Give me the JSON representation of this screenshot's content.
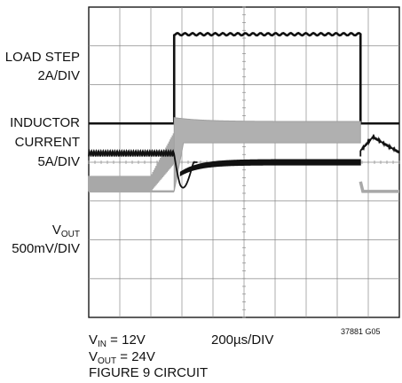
{
  "chart_data": {
    "type": "line",
    "title": "",
    "subtitle": "",
    "grid": true,
    "x_divisions": 10,
    "y_divisions": 8,
    "time_per_div": "200µs/DIV",
    "x_unit_us_per_div": 200,
    "x": [
      0,
      200,
      400,
      600,
      800,
      1000,
      1200,
      1400,
      1600,
      1800,
      2000
    ],
    "series": [
      {
        "name": "LOAD STEP",
        "scale": "2A/DIV",
        "y_div": [
          1.0,
          1.0,
          1.0,
          3.3,
          3.3,
          3.3,
          3.3,
          3.3,
          3.3,
          1.0,
          1.0
        ]
      },
      {
        "name": "INDUCTOR CURRENT",
        "scale": "5A/DIV",
        "y_div_low": [
          -0.75,
          -0.75,
          -0.75,
          0.2,
          0.5,
          0.5,
          0.5,
          0.5,
          0.5,
          -0.75,
          -0.75
        ],
        "y_div_high": [
          -0.35,
          -0.35,
          -0.35,
          1.15,
          1.15,
          1.05,
          0.95,
          0.95,
          0.95,
          -0.75,
          -0.75
        ]
      },
      {
        "name": "VOUT",
        "scale": "500mV/DIV",
        "y_div": [
          0.2,
          0.2,
          0.2,
          -0.8,
          -0.3,
          -0.05,
          0.0,
          0.0,
          0.2,
          0.65,
          0.25
        ]
      }
    ]
  },
  "labels": {
    "load_step": "LOAD STEP",
    "load_step_scale": "2A/DIV",
    "inductor_1": "INDUCTOR",
    "inductor_2": "CURRENT",
    "inductor_scale": "5A/DIV",
    "vout_main": "V",
    "vout_sub": "OUT",
    "vout_scale": "500mV/DIV"
  },
  "footer": {
    "vin_main": "V",
    "vin_sub": "IN",
    "vin_rest": " = 12V",
    "vout_main": "V",
    "vout_sub": "OUT",
    "vout_rest": " = 24V",
    "circuit": "FIGURE 9 CIRCUIT",
    "timebase": "200µs/DIV",
    "figure_id": "37881 G05"
  }
}
